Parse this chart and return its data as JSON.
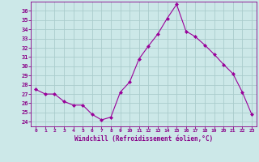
{
  "x": [
    0,
    1,
    2,
    3,
    4,
    5,
    6,
    7,
    8,
    9,
    10,
    11,
    12,
    13,
    14,
    15,
    16,
    17,
    18,
    19,
    20,
    21,
    22,
    23
  ],
  "y": [
    27.5,
    27.0,
    27.0,
    26.2,
    25.8,
    25.8,
    24.8,
    24.2,
    24.5,
    27.2,
    28.3,
    30.8,
    32.2,
    33.5,
    35.2,
    36.7,
    33.8,
    33.2,
    32.3,
    31.3,
    30.2,
    29.2,
    27.2,
    24.8
  ],
  "line_color": "#990099",
  "marker": "D",
  "marker_size": 2.0,
  "bg_color": "#cce8e8",
  "grid_color": "#aacccc",
  "xlabel": "Windchill (Refroidissement éolien,°C)",
  "xlabel_color": "#880088",
  "tick_color": "#880088",
  "ylim": [
    23.5,
    37.0
  ],
  "xlim": [
    -0.5,
    23.5
  ],
  "yticks": [
    24,
    25,
    26,
    27,
    28,
    29,
    30,
    31,
    32,
    33,
    34,
    35,
    36
  ],
  "xticks": [
    0,
    1,
    2,
    3,
    4,
    5,
    6,
    7,
    8,
    9,
    10,
    11,
    12,
    13,
    14,
    15,
    16,
    17,
    18,
    19,
    20,
    21,
    22,
    23
  ]
}
